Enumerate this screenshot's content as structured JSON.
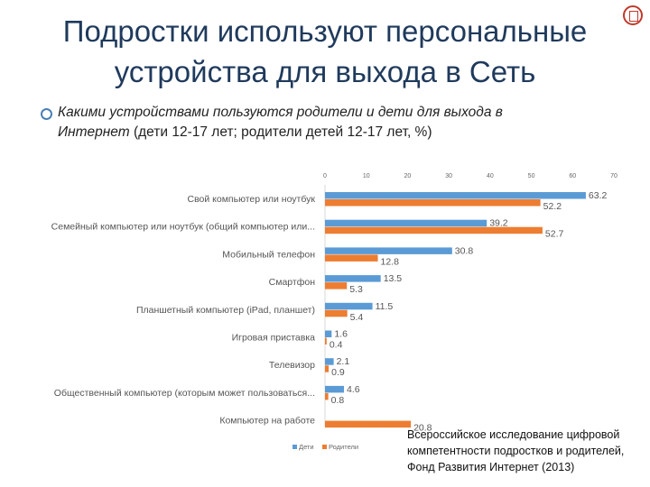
{
  "header": {
    "title_line1": "Подростки используют персональные",
    "title_line2": "устройства для выхода в Сеть"
  },
  "subtitle": {
    "italic": "Какими устройствами пользуются родители и дети для выхода в Интернет",
    "normal": " (дети 12-17 лет; родители детей 12-17 лет, %)"
  },
  "source": "Всероссийское исследование цифровой компетентности подростков и родителей, Фонд Развития Интернет (2013)",
  "colors": {
    "children": "#5b9bd5",
    "parents": "#ed7d31",
    "title": "#1f3a5c"
  },
  "icons": {
    "bullet": "circle-bullet-icon",
    "logo": "university-logo-icon"
  },
  "chart_data": {
    "type": "bar",
    "orientation": "horizontal",
    "categories": [
      "Свой компьютер или ноутбук",
      "Семейный компьютер или ноутбук (общий компьютер или...",
      "Мобильный телефон",
      "Смартфон",
      "Планшетный компьютер (iPad, планшет)",
      "Игровая приставка",
      "Телевизор",
      "Общественный компьютер (которым может пользоваться...",
      "Компьютер на работе"
    ],
    "series": [
      {
        "name": "Дети",
        "values": [
          63.2,
          39.2,
          30.8,
          13.5,
          11.5,
          1.6,
          2.1,
          4.6,
          null
        ]
      },
      {
        "name": "Родители",
        "values": [
          52.2,
          52.7,
          12.8,
          5.3,
          5.4,
          0.4,
          0.9,
          0.8,
          20.8
        ]
      }
    ],
    "data_labels": {
      "Дети": [
        "63.2",
        "39.2",
        "30.8",
        "13.5",
        "11.5",
        "1.6",
        "2.1",
        "4.6",
        ""
      ],
      "Родители": [
        "52.2",
        "52.7",
        "12.8",
        "5.3",
        "5.4",
        "0.4",
        "0.9",
        "0.8",
        "20.8"
      ]
    },
    "xlim": [
      0,
      70
    ],
    "xticks": [
      "0",
      "10",
      "20",
      "30",
      "40",
      "50",
      "60",
      "70"
    ],
    "legend_position": "bottom",
    "grid": false
  }
}
